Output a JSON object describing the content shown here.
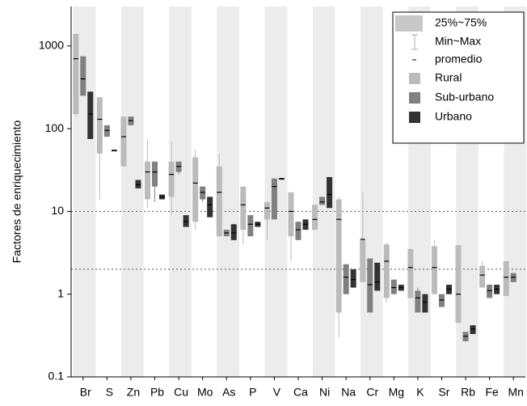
{
  "chart_data": {
    "type": "box",
    "y_label": "Factores de enriquecimiento",
    "categories": [
      "Br",
      "S",
      "Zn",
      "Pb",
      "Cu",
      "Mo",
      "As",
      "P",
      "V",
      "Ca",
      "Ni",
      "Na",
      "Cr",
      "Mg",
      "K",
      "Sr",
      "Rb",
      "Fe",
      "Mn"
    ],
    "ylim": [
      0.1,
      3000
    ],
    "yticks": [
      0.1,
      1,
      10,
      100,
      1000
    ],
    "log_y": true,
    "hlines": [
      10,
      2
    ],
    "legend_keys": [
      "25%~75%",
      "Min~Max",
      "promedio"
    ],
    "legend_position": "upper right",
    "series": [
      {
        "name": "Rural",
        "color": "#bbbbbb",
        "q1": [
          150,
          50,
          35,
          14,
          15,
          7.5,
          5,
          6,
          8,
          5,
          6,
          0.6,
          1.4,
          0.9,
          0.9,
          1,
          0.45,
          1.2,
          0.95
        ],
        "q3": [
          1400,
          240,
          140,
          40,
          40,
          45,
          35,
          20,
          13,
          17,
          12,
          14,
          4.5,
          4,
          3.5,
          3.8,
          3.9,
          2.2,
          2.5
        ],
        "min": [
          140,
          14,
          35,
          11,
          9,
          6,
          5,
          4,
          4.5,
          2.5,
          6,
          0.3,
          1.4,
          0.8,
          0.9,
          1,
          0.45,
          1.2,
          0.95
        ],
        "max": [
          1400,
          240,
          140,
          75,
          70,
          55,
          50,
          20,
          13,
          17,
          12,
          15,
          17,
          4.2,
          3.6,
          4.5,
          3.9,
          2.5,
          2.5
        ],
        "mean": [
          700,
          130,
          80,
          30,
          28,
          22,
          17,
          12,
          11,
          10,
          8,
          8,
          4.6,
          2.5,
          2.1,
          2.1,
          1,
          1.7,
          1.6
        ]
      },
      {
        "name": "Sub-urbano",
        "color": "#808080",
        "q1": [
          250,
          80,
          110,
          20,
          30,
          14,
          5,
          5,
          8,
          4.5,
          12,
          1,
          0.6,
          1,
          0.6,
          0.7,
          0.27,
          0.9,
          1.4
        ],
        "q3": [
          750,
          110,
          140,
          40,
          40,
          20,
          6,
          9,
          25,
          7.5,
          15,
          2.3,
          2.7,
          1.5,
          1.1,
          1,
          0.35,
          1.3,
          1.8
        ],
        "min": [
          250,
          80,
          110,
          13,
          28,
          13,
          5,
          5,
          8,
          4.5,
          12,
          1,
          0.6,
          1,
          0.6,
          0.7,
          0.27,
          0.9,
          1.4
        ],
        "max": [
          750,
          110,
          140,
          40,
          40,
          20,
          6,
          9,
          25,
          7.5,
          15,
          2.3,
          2.7,
          1.5,
          1.2,
          1,
          0.35,
          1.3,
          1.8
        ],
        "mean": [
          400,
          95,
          125,
          30,
          35,
          17,
          5.5,
          7,
          20,
          6,
          13,
          1.6,
          1.3,
          1.2,
          0.9,
          0.85,
          0.31,
          1.1,
          1.6
        ]
      },
      {
        "name": "Urbano",
        "color": "#333333",
        "q1": [
          75,
          55,
          19,
          14,
          6.5,
          8.5,
          4.5,
          6.5,
          25,
          6,
          11,
          1.2,
          1.1,
          1.1,
          0.6,
          1,
          0.33,
          1,
          null
        ],
        "q3": [
          280,
          55,
          24,
          16,
          9,
          15,
          7,
          7.5,
          25,
          8,
          26,
          2,
          2.4,
          1.3,
          1,
          1.3,
          0.42,
          1.3,
          null
        ],
        "min": [
          75,
          55,
          19,
          14,
          6.5,
          8.5,
          4.5,
          6.5,
          25,
          6,
          11,
          1.2,
          1.1,
          1.1,
          0.6,
          1,
          0.33,
          1,
          null
        ],
        "max": [
          280,
          55,
          24,
          16,
          9,
          15,
          7,
          7.5,
          25,
          8,
          26,
          2,
          2.4,
          1.3,
          1,
          1.3,
          0.42,
          1.3,
          null
        ],
        "mean": [
          150,
          55,
          21,
          15,
          7.5,
          12,
          5.5,
          7,
          25,
          7,
          16,
          1.5,
          1.4,
          1.2,
          0.8,
          1.15,
          0.38,
          1.15,
          null
        ]
      }
    ]
  }
}
